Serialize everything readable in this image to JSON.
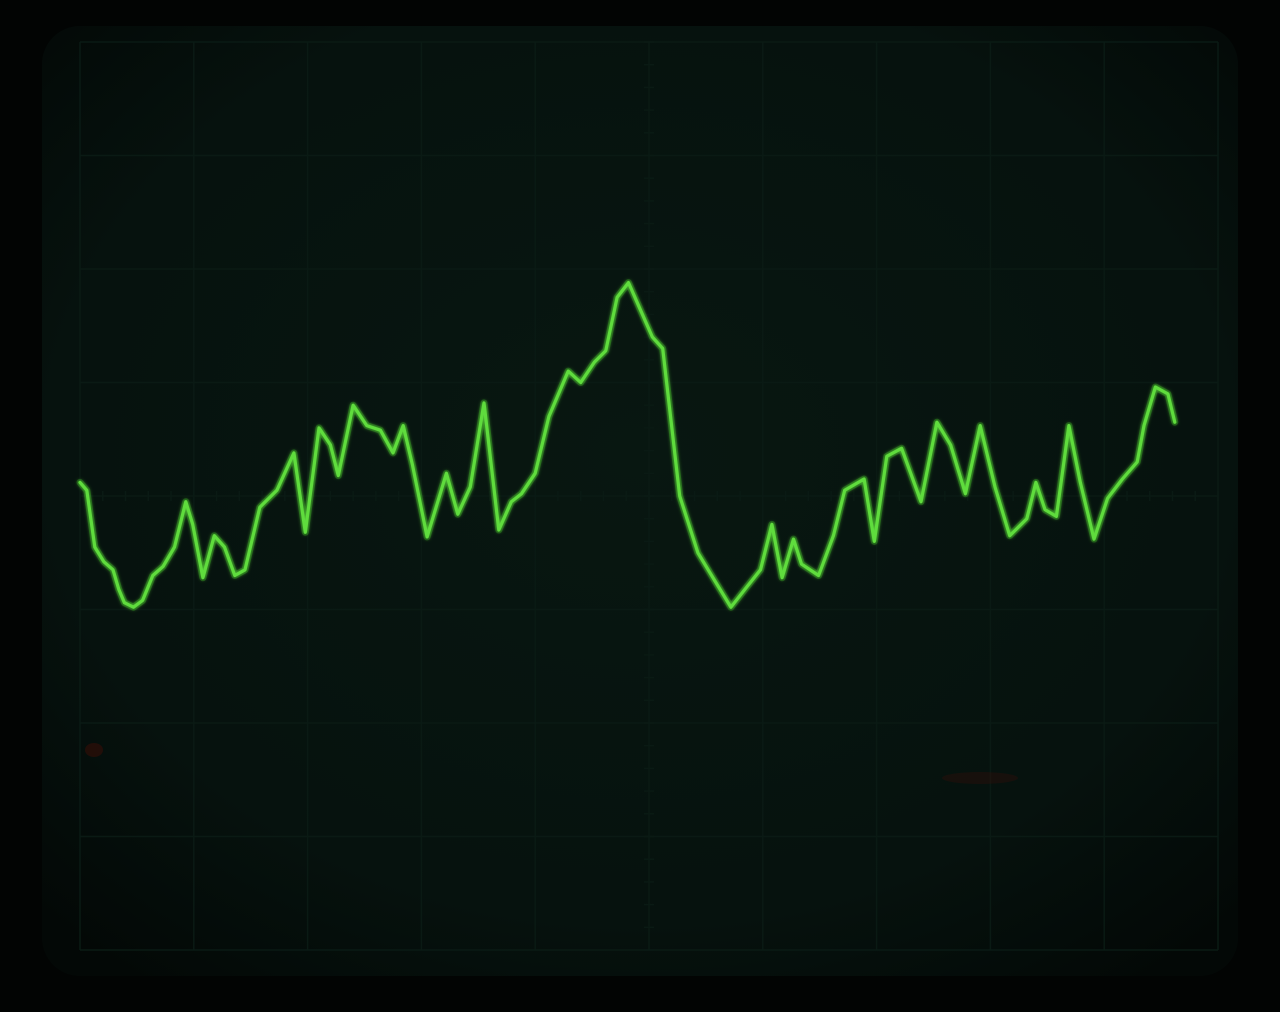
{
  "scene": {
    "subject": "oscilloscope-crt-screen",
    "colors": {
      "background": "#020403",
      "screen": "#06120e",
      "screen_edge": "#030806",
      "graticule": "#0a1a14",
      "trace": "#5fdc3c",
      "trace_glow": "#37b31e",
      "faint_reflection": "#3a0f08"
    }
  },
  "graticule": {
    "major_divisions_x": 10,
    "major_divisions_y": 8,
    "minor_ticks_per_division": 5
  },
  "chart_data": {
    "type": "line",
    "xlim": [
      0,
      10
    ],
    "ylim": [
      -4,
      4
    ],
    "grid": true,
    "series": [
      {
        "values": [
          [
            0.0,
            0.12
          ],
          [
            0.06,
            0.05
          ],
          [
            0.13,
            -0.45
          ],
          [
            0.21,
            -0.58
          ],
          [
            0.29,
            -0.65
          ],
          [
            0.34,
            -0.82
          ],
          [
            0.39,
            -0.94
          ],
          [
            0.47,
            -0.98
          ],
          [
            0.55,
            -0.92
          ],
          [
            0.64,
            -0.7
          ],
          [
            0.73,
            -0.62
          ],
          [
            0.83,
            -0.45
          ],
          [
            0.93,
            -0.05
          ],
          [
            0.99,
            -0.25
          ],
          [
            1.08,
            -0.72
          ],
          [
            1.18,
            -0.35
          ],
          [
            1.27,
            -0.45
          ],
          [
            1.36,
            -0.7
          ],
          [
            1.45,
            -0.65
          ],
          [
            1.58,
            -0.1
          ],
          [
            1.73,
            0.05
          ],
          [
            1.88,
            0.38
          ],
          [
            1.98,
            -0.32
          ],
          [
            2.1,
            0.6
          ],
          [
            2.2,
            0.45
          ],
          [
            2.27,
            0.18
          ],
          [
            2.4,
            0.8
          ],
          [
            2.52,
            0.62
          ],
          [
            2.64,
            0.58
          ],
          [
            2.75,
            0.38
          ],
          [
            2.84,
            0.62
          ],
          [
            2.92,
            0.28
          ],
          [
            3.05,
            -0.36
          ],
          [
            3.22,
            0.2
          ],
          [
            3.32,
            -0.16
          ],
          [
            3.43,
            0.08
          ],
          [
            3.55,
            0.82
          ],
          [
            3.68,
            -0.3
          ],
          [
            3.79,
            -0.05
          ],
          [
            3.88,
            0.02
          ],
          [
            4.0,
            0.2
          ],
          [
            4.12,
            0.7
          ],
          [
            4.29,
            1.1
          ],
          [
            4.4,
            1.0
          ],
          [
            4.52,
            1.18
          ],
          [
            4.62,
            1.28
          ],
          [
            4.72,
            1.75
          ],
          [
            4.82,
            1.88
          ],
          [
            4.92,
            1.65
          ],
          [
            5.03,
            1.4
          ],
          [
            5.12,
            1.3
          ],
          [
            5.27,
            0.0
          ],
          [
            5.43,
            -0.5
          ],
          [
            5.58,
            -0.75
          ],
          [
            5.72,
            -0.98
          ],
          [
            5.86,
            -0.8
          ],
          [
            5.98,
            -0.65
          ],
          [
            6.08,
            -0.25
          ],
          [
            6.17,
            -0.72
          ],
          [
            6.27,
            -0.38
          ],
          [
            6.34,
            -0.6
          ],
          [
            6.49,
            -0.7
          ],
          [
            6.62,
            -0.35
          ],
          [
            6.72,
            0.05
          ],
          [
            6.89,
            0.15
          ],
          [
            6.98,
            -0.4
          ],
          [
            7.09,
            0.35
          ],
          [
            7.22,
            0.42
          ],
          [
            7.39,
            -0.05
          ],
          [
            7.53,
            0.65
          ],
          [
            7.65,
            0.45
          ],
          [
            7.78,
            0.02
          ],
          [
            7.91,
            0.62
          ],
          [
            8.04,
            0.08
          ],
          [
            8.17,
            -0.35
          ],
          [
            8.32,
            -0.2
          ],
          [
            8.4,
            0.12
          ],
          [
            8.48,
            -0.12
          ],
          [
            8.58,
            -0.18
          ],
          [
            8.69,
            0.62
          ],
          [
            8.79,
            0.12
          ],
          [
            8.91,
            -0.38
          ],
          [
            9.03,
            -0.02
          ],
          [
            9.16,
            0.15
          ],
          [
            9.29,
            0.3
          ],
          [
            9.35,
            0.62
          ],
          [
            9.45,
            0.96
          ],
          [
            9.56,
            0.9
          ],
          [
            9.62,
            0.65
          ]
        ]
      }
    ]
  }
}
